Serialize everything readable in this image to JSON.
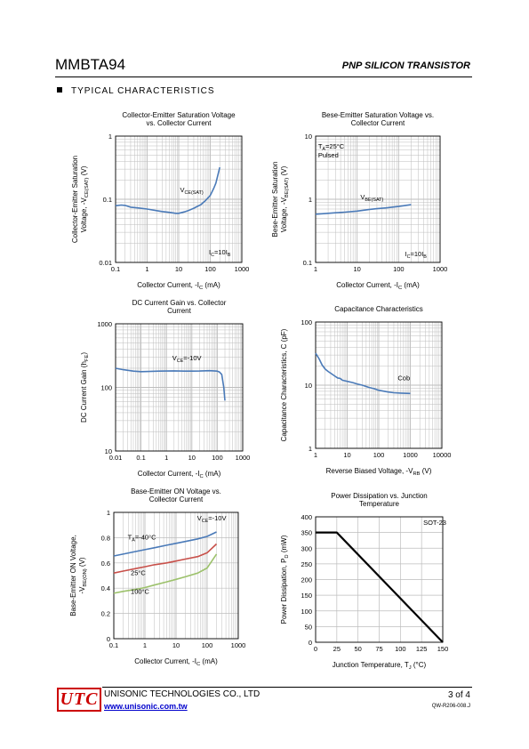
{
  "header": {
    "part_number": "MMBTA94",
    "part_type": "PNP SILICON TRANSISTOR"
  },
  "section": {
    "title": "TYPICAL CHARACTERISTICS"
  },
  "footer": {
    "company": "UNISONIC TECHNOLOGIES CO., LTD",
    "logo": "UTC",
    "url": "www.unisonic.com.tw",
    "page": "3 of 4",
    "doc_id": "QW-R206-008.J"
  },
  "colors": {
    "curve_blue": "#4a7ab8",
    "curve_red": "#c8504a",
    "curve_green": "#9cc16b",
    "grid": "#bdbdbd",
    "logo_red": "#cc0000",
    "link_blue": "#0000cc"
  },
  "chart_data": [
    {
      "id": "c1",
      "type": "line",
      "title": [
        "Collector-Emitter Saturation Voltage",
        "vs. Collector Current"
      ],
      "xlabel": [
        [
          "Collector Current, -I",
          ""
        ],
        [
          "C",
          "sub"
        ],
        [
          " (mA)",
          ""
        ]
      ],
      "ylabel": [
        [
          [
            "Collector-Emitter Saturation",
            ""
          ]
        ],
        [
          [
            "Voltage, -V",
            ""
          ],
          [
            "CE(SAT)",
            "sub"
          ],
          [
            " (V)",
            ""
          ]
        ]
      ],
      "xscale": "log",
      "yscale": "log",
      "xlim": [
        0.1,
        1000
      ],
      "ylim": [
        0.01,
        1
      ],
      "xticks": [
        "0.1",
        "1",
        "10",
        "100",
        "1000"
      ],
      "yticks": [
        "0.01",
        "0.1",
        "1"
      ],
      "annotations": [
        {
          "x": 11,
          "y": 0.13,
          "parts": [
            [
              "V",
              ""
            ],
            [
              "CE(SAT)",
              "sub"
            ]
          ]
        },
        {
          "x": 200,
          "y": 0.0133,
          "anchor": "middle",
          "parts": [
            [
              "I",
              ""
            ],
            [
              "C",
              "sub"
            ],
            [
              "=10I",
              ""
            ],
            [
              "B",
              "sub"
            ]
          ]
        }
      ],
      "series": [
        {
          "color": "#4a7ab8",
          "x": [
            0.1,
            0.15,
            0.2,
            0.3,
            0.5,
            1,
            2,
            3,
            5,
            8,
            10,
            15,
            20,
            30,
            50,
            70,
            100,
            130,
            150,
            200
          ],
          "y": [
            0.079,
            0.081,
            0.08,
            0.075,
            0.073,
            0.07,
            0.066,
            0.064,
            0.062,
            0.06,
            0.06,
            0.063,
            0.066,
            0.072,
            0.082,
            0.095,
            0.115,
            0.15,
            0.18,
            0.32
          ]
        }
      ]
    },
    {
      "id": "c2",
      "type": "line",
      "title": [
        "Bese-Emitter Saturation Voltage vs.",
        "Collector Current"
      ],
      "xlabel": [
        [
          "Collector Current, -I",
          ""
        ],
        [
          "C",
          "sub"
        ],
        [
          " (mA)",
          ""
        ]
      ],
      "ylabel": [
        [
          [
            "Bese-Emitter Saturation",
            ""
          ]
        ],
        [
          [
            "Voltage, -V",
            ""
          ],
          [
            "BE(SAT)",
            "sub"
          ],
          [
            " (V)",
            ""
          ]
        ]
      ],
      "xscale": "log",
      "yscale": "log",
      "xlim": [
        1,
        1000
      ],
      "ylim": [
        0.1,
        10
      ],
      "xticks": [
        "1",
        "10",
        "100",
        "1000"
      ],
      "yticks": [
        "0.1",
        "1",
        "10"
      ],
      "annotations": [
        {
          "x": 1.15,
          "y": 6.3,
          "parts": [
            [
              "T",
              ""
            ],
            [
              "A",
              "sub"
            ],
            [
              "=25°C",
              ""
            ]
          ]
        },
        {
          "x": 1.15,
          "y": 4.6,
          "parts": [
            [
              "Pulsed",
              ""
            ]
          ]
        },
        {
          "x": 12,
          "y": 1.0,
          "parts": [
            [
              "V",
              ""
            ],
            [
              "BE(SAT)",
              "sub"
            ]
          ]
        },
        {
          "x": 260,
          "y": 0.125,
          "anchor": "middle",
          "parts": [
            [
              "I",
              ""
            ],
            [
              "C",
              "sub"
            ],
            [
              "=10I",
              ""
            ],
            [
              "B",
              "sub"
            ]
          ]
        }
      ],
      "series": [
        {
          "color": "#4a7ab8",
          "x": [
            1,
            2,
            3,
            5,
            10,
            20,
            30,
            50,
            100,
            200
          ],
          "y": [
            0.58,
            0.6,
            0.61,
            0.625,
            0.65,
            0.69,
            0.71,
            0.73,
            0.77,
            0.82
          ]
        }
      ]
    },
    {
      "id": "c3",
      "type": "line",
      "title": [
        "DC Current Gain vs. Collector",
        "Current"
      ],
      "xlabel": [
        [
          "Collector Current, -I",
          ""
        ],
        [
          "C",
          "sub"
        ],
        [
          " (mA)",
          ""
        ]
      ],
      "ylabel": [
        [
          [
            "DC Current Gain (h",
            ""
          ],
          [
            "FE",
            "sub"
          ],
          [
            ")",
            ""
          ]
        ]
      ],
      "xscale": "log",
      "yscale": "log",
      "xlim": [
        0.01,
        1000
      ],
      "ylim": [
        10,
        1000
      ],
      "xticks": [
        "0.01",
        "0.1",
        "1",
        "10",
        "100",
        "1000"
      ],
      "yticks": [
        "10",
        "100",
        "1000"
      ],
      "annotations": [
        {
          "x": 1.7,
          "y": 265,
          "parts": [
            [
              "V",
              ""
            ],
            [
              "CE",
              "sub"
            ],
            [
              "=-10V",
              ""
            ]
          ]
        }
      ],
      "series": [
        {
          "color": "#4a7ab8",
          "x": [
            0.01,
            0.02,
            0.05,
            0.1,
            0.2,
            0.5,
            1,
            2,
            5,
            10,
            20,
            50,
            100,
            120,
            150,
            180,
            200
          ],
          "y": [
            200,
            190,
            180,
            177,
            178,
            180,
            181,
            182,
            180,
            180,
            181,
            183,
            180,
            175,
            160,
            100,
            62
          ]
        }
      ]
    },
    {
      "id": "c4",
      "type": "line",
      "title": [
        "Capacitance Characteristics"
      ],
      "xlabel": [
        [
          "Reverse Biased Voltage, -V",
          ""
        ],
        [
          "RB",
          "sub"
        ],
        [
          " (V)",
          ""
        ]
      ],
      "ylabel": [
        [
          [
            "Capacitance Characteristics, C (pF)",
            ""
          ]
        ]
      ],
      "xscale": "log",
      "yscale": "log",
      "xlim": [
        1,
        10000
      ],
      "ylim": [
        1,
        100
      ],
      "xticks": [
        "1",
        "10",
        "100",
        "1000",
        "10000"
      ],
      "yticks": [
        "1",
        "10",
        "100"
      ],
      "annotations": [
        {
          "x": 400,
          "y": 12,
          "parts": [
            [
              "Cob",
              ""
            ]
          ]
        }
      ],
      "series": [
        {
          "color": "#4a7ab8",
          "x": [
            1,
            1.3,
            1.6,
            2,
            2.5,
            3,
            4,
            5,
            6,
            7,
            8,
            10,
            15,
            20,
            30,
            50,
            70,
            100,
            200,
            300,
            500,
            1000
          ],
          "y": [
            32,
            26,
            21,
            18,
            16.5,
            15.5,
            14,
            13,
            12.8,
            12,
            11.8,
            11.5,
            11,
            10.5,
            10,
            9.2,
            8.8,
            8.3,
            7.8,
            7.6,
            7.5,
            7.4
          ]
        }
      ]
    },
    {
      "id": "c5",
      "type": "line",
      "title": [
        "Base-Emitter ON Voltage  vs.",
        "Collector Current"
      ],
      "xlabel": [
        [
          "Collector Current, -I",
          ""
        ],
        [
          "C",
          "sub"
        ],
        [
          " (mA)",
          ""
        ]
      ],
      "ylabel": [
        [
          [
            "Base-Emitter ON Voltage,",
            ""
          ]
        ],
        [
          [
            "-V",
            ""
          ],
          [
            "BE(ON)",
            "sub"
          ],
          [
            " (V)",
            ""
          ]
        ]
      ],
      "xscale": "log",
      "yscale": "linear",
      "xlim": [
        0.1,
        1000
      ],
      "ylim": [
        0,
        1
      ],
      "xticks": [
        "0.1",
        "1",
        "10",
        "100",
        "1000"
      ],
      "yticks": [
        "0",
        "0.2",
        "0.4",
        "0.6",
        "0.8",
        "1"
      ],
      "annotations": [
        {
          "x": 140,
          "y": 0.935,
          "anchor": "middle",
          "parts": [
            [
              "V",
              ""
            ],
            [
              "CE",
              "sub"
            ],
            [
              "=-10V",
              ""
            ]
          ]
        },
        {
          "x": 0.28,
          "y": 0.785,
          "parts": [
            [
              "T",
              ""
            ],
            [
              "A",
              "sub"
            ],
            [
              "=-40°C",
              ""
            ]
          ]
        },
        {
          "x": 0.35,
          "y": 0.505,
          "parts": [
            [
              "25°C",
              ""
            ]
          ]
        },
        {
          "x": 0.35,
          "y": 0.355,
          "parts": [
            [
              "100°C",
              ""
            ]
          ]
        }
      ],
      "series": [
        {
          "name": "-40°C",
          "color": "#4a7ab8",
          "x": [
            0.1,
            0.2,
            0.5,
            1,
            2,
            5,
            10,
            20,
            50,
            100,
            200
          ],
          "y": [
            0.655,
            0.67,
            0.69,
            0.705,
            0.72,
            0.74,
            0.755,
            0.77,
            0.79,
            0.81,
            0.845
          ]
        },
        {
          "name": "25°C",
          "color": "#c8504a",
          "x": [
            0.1,
            0.2,
            0.5,
            1,
            2,
            5,
            10,
            20,
            50,
            100,
            200
          ],
          "y": [
            0.52,
            0.535,
            0.555,
            0.57,
            0.585,
            0.6,
            0.615,
            0.63,
            0.65,
            0.68,
            0.75
          ]
        },
        {
          "name": "100°C",
          "color": "#9cc16b",
          "x": [
            0.1,
            0.2,
            0.5,
            1,
            2,
            5,
            10,
            20,
            50,
            100,
            200
          ],
          "y": [
            0.36,
            0.375,
            0.39,
            0.405,
            0.425,
            0.45,
            0.47,
            0.49,
            0.52,
            0.56,
            0.67
          ]
        }
      ]
    },
    {
      "id": "c6",
      "type": "line",
      "title": [
        "Power Dissipation vs. Junction",
        "Temperature"
      ],
      "xlabel": [
        [
          "Junction Temperature, T",
          ""
        ],
        [
          "J",
          "sub"
        ],
        [
          " (°C)",
          ""
        ]
      ],
      "ylabel": [
        [
          [
            "Power Dissipation, P",
            ""
          ],
          [
            "D",
            "sub"
          ],
          [
            " (mW)",
            ""
          ]
        ]
      ],
      "xscale": "linear",
      "yscale": "linear",
      "xlim": [
        0,
        150
      ],
      "ylim": [
        0,
        400
      ],
      "xticks": [
        "0",
        "25",
        "50",
        "75",
        "100",
        "125",
        "150"
      ],
      "yticks": [
        "0",
        "50",
        "100",
        "150",
        "200",
        "250",
        "300",
        "350",
        "400"
      ],
      "annotations": [
        {
          "x": 127,
          "y": 375,
          "parts": [
            [
              "SOT-23",
              ""
            ]
          ]
        }
      ],
      "series": [
        {
          "color": "#000000",
          "x": [
            0,
            25,
            150
          ],
          "y": [
            350,
            350,
            0
          ]
        }
      ]
    }
  ]
}
